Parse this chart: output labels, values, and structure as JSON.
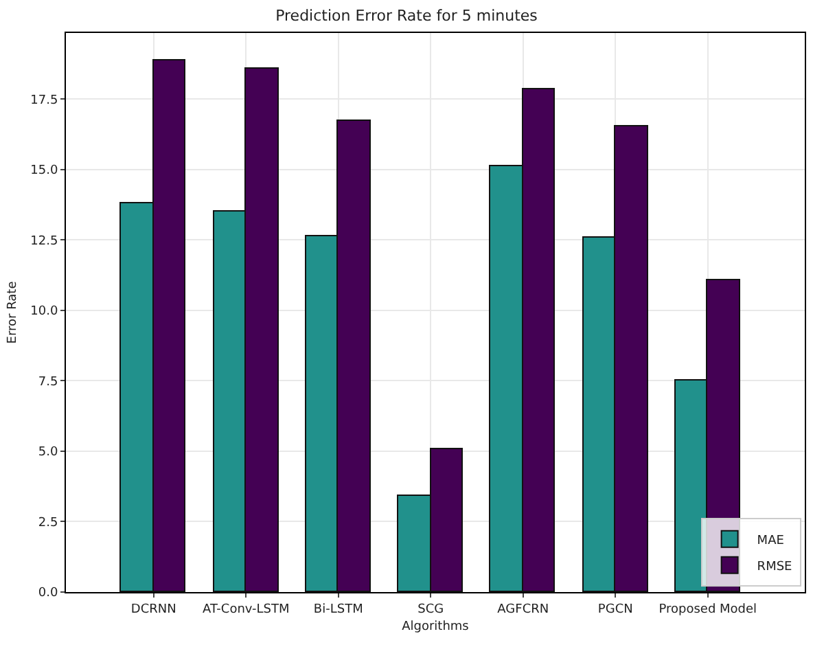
{
  "chart_data": {
    "type": "bar",
    "title": "Prediction Error Rate for 5 minutes",
    "xlabel": "Algorithms",
    "ylabel": "Error Rate",
    "categories": [
      "DCRNN",
      "AT-Conv-LSTM",
      "Bi-LSTM",
      "SCG",
      "AGFCRN",
      "PGCN",
      "Proposed Model"
    ],
    "series": [
      {
        "name": "MAE",
        "color": "#21918c",
        "values": [
          13.8,
          13.5,
          12.63,
          3.41,
          15.12,
          12.59,
          7.51
        ]
      },
      {
        "name": "RMSE",
        "color": "#440154",
        "values": [
          18.88,
          18.58,
          16.73,
          5.07,
          17.85,
          16.54,
          11.07
        ]
      }
    ],
    "ylim": [
      0,
      19.85
    ],
    "yticks": [
      {
        "value": 0,
        "label": "0.0"
      },
      {
        "value": 2.5,
        "label": "2.5"
      },
      {
        "value": 5,
        "label": "5.0"
      },
      {
        "value": 7.5,
        "label": "7.5"
      },
      {
        "value": 10,
        "label": "10.0"
      },
      {
        "value": 12.5,
        "label": "12.5"
      },
      {
        "value": 15,
        "label": "15.0"
      },
      {
        "value": 17.5,
        "label": "17.5"
      }
    ],
    "grid": true,
    "legend": "bottom right"
  }
}
